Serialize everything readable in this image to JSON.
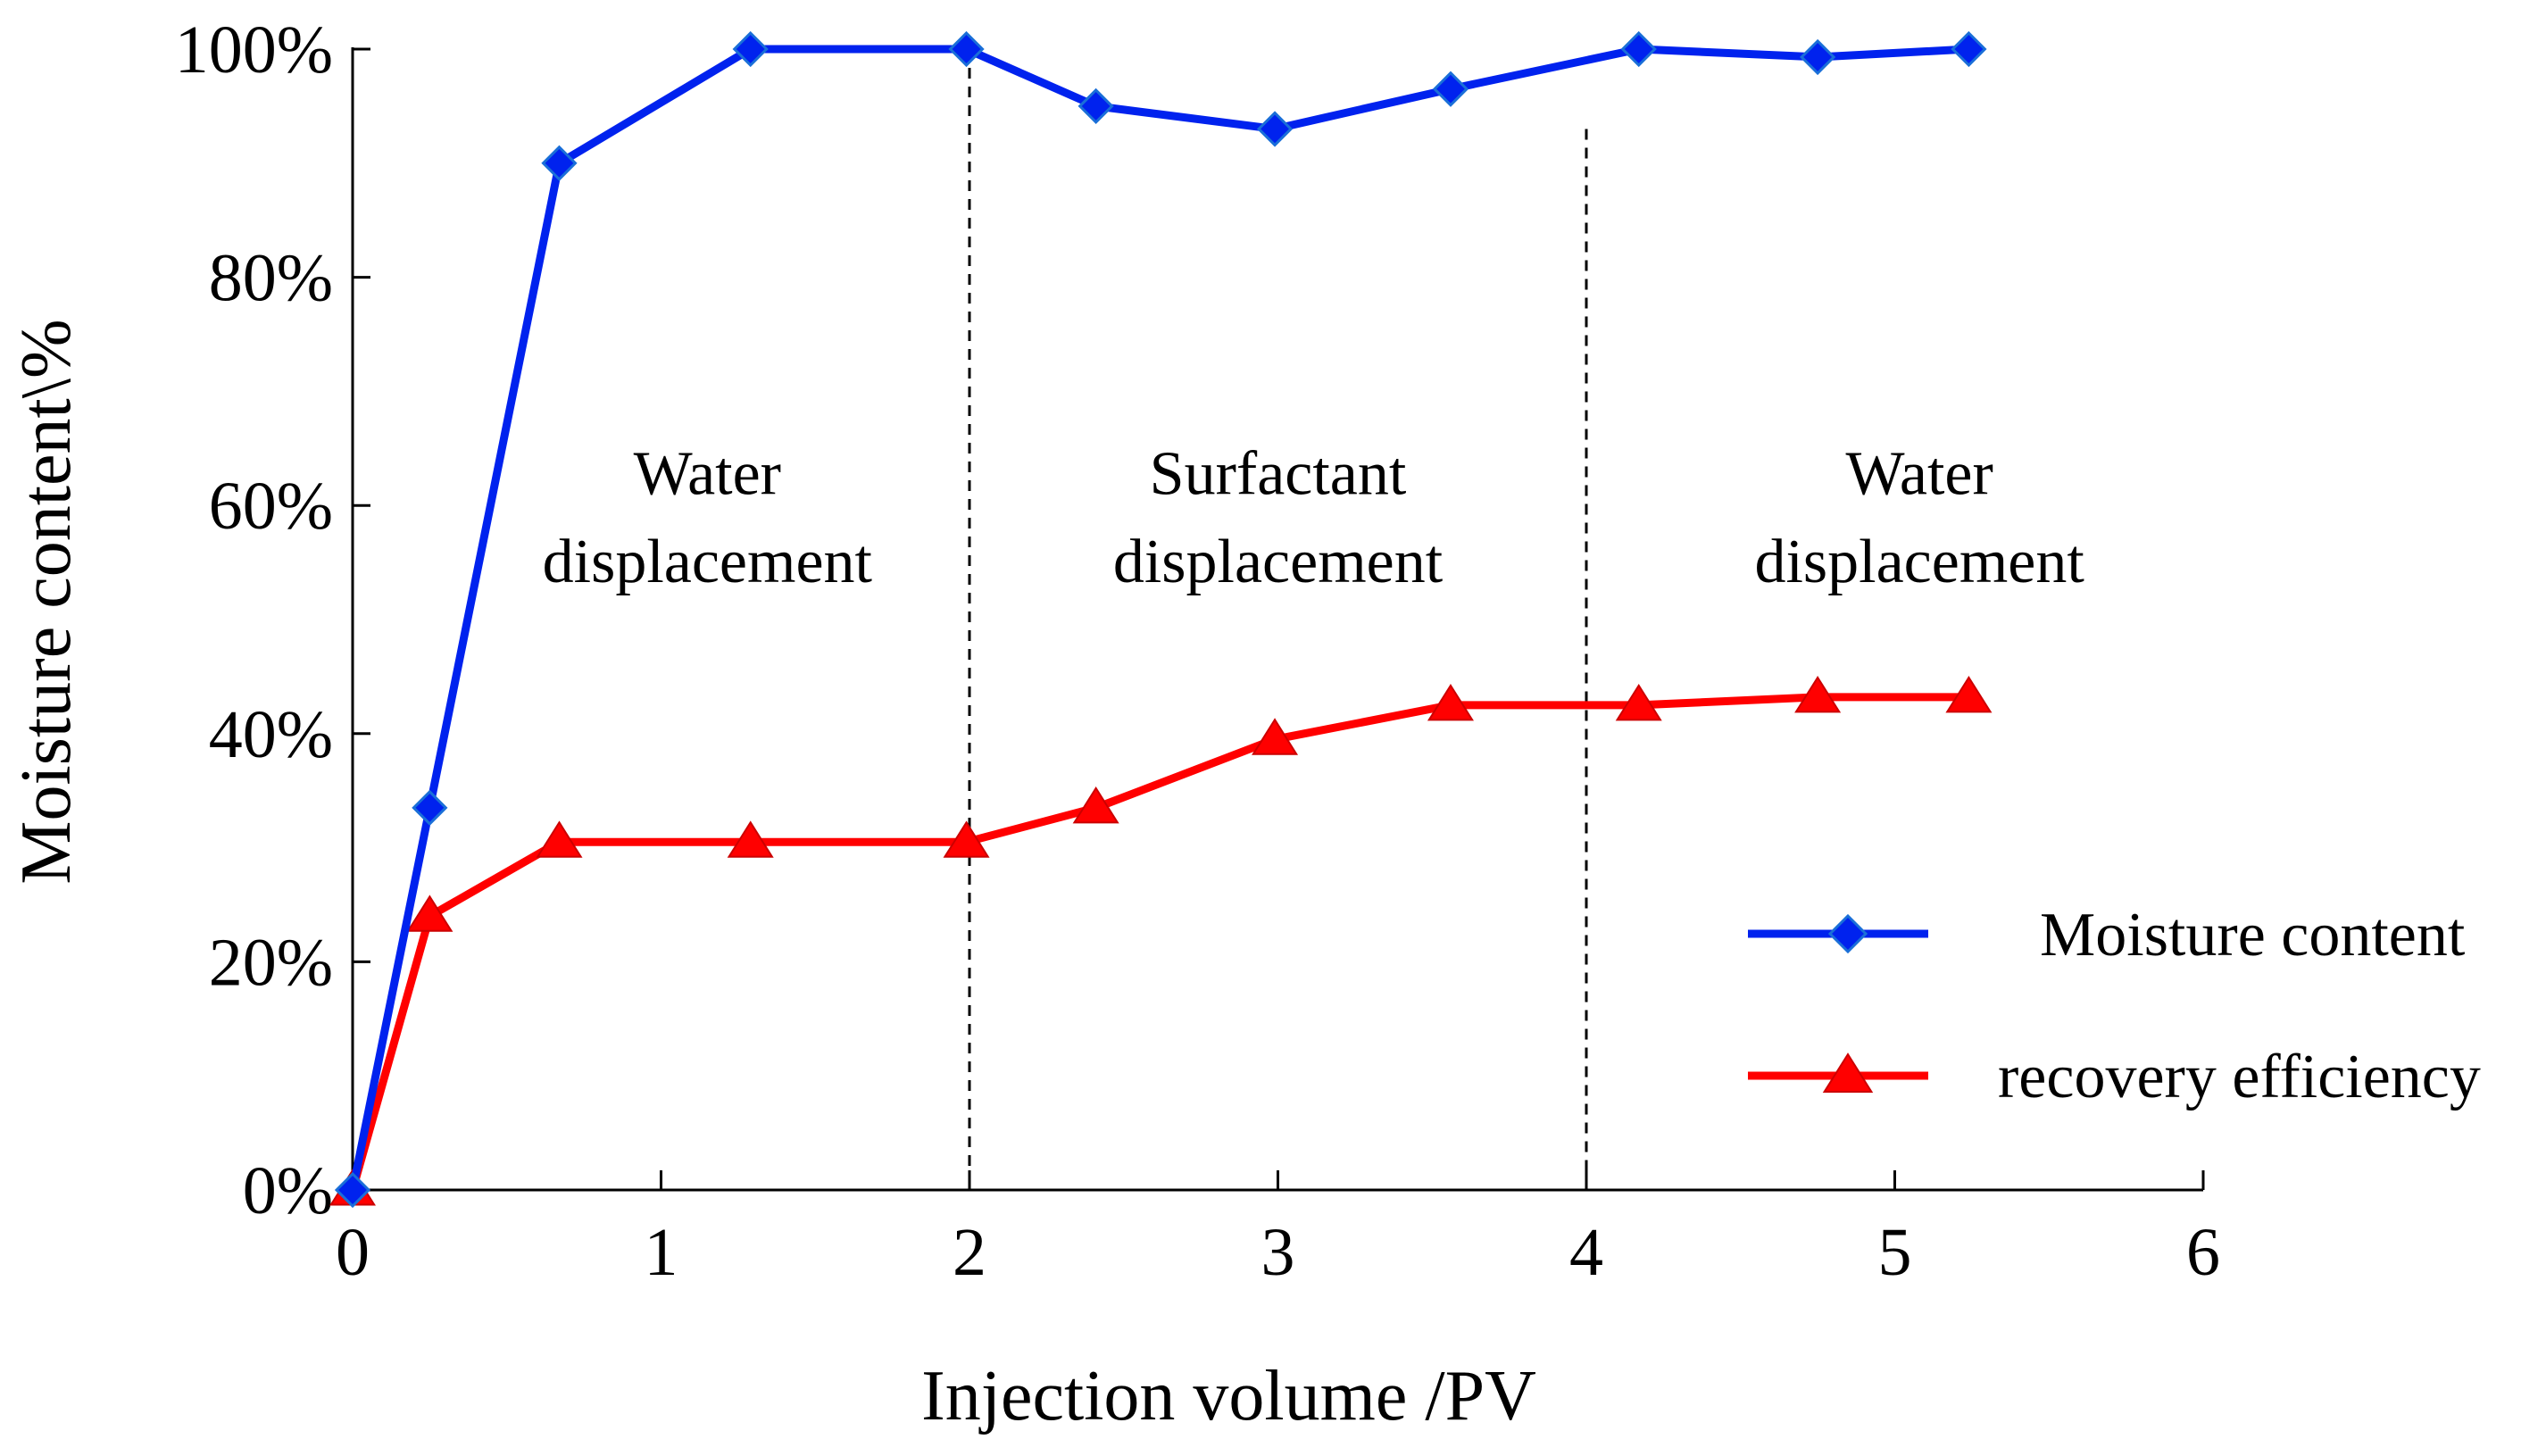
{
  "chart_data": {
    "type": "line",
    "title": "",
    "xlabel": "Injection volume /PV",
    "ylabel": "Moisture content\\%",
    "xlim": [
      0,
      6
    ],
    "ylim": [
      0,
      100
    ],
    "xticks": [
      0,
      1,
      2,
      3,
      4,
      5,
      6
    ],
    "xtick_labels": [
      "0",
      "1",
      "2",
      "3",
      "4",
      "5",
      "6"
    ],
    "yticks": [
      0,
      20,
      40,
      60,
      80,
      100
    ],
    "ytick_labels": [
      "0%",
      "20%",
      "40%",
      "60%",
      "80%",
      "100%"
    ],
    "grid": false,
    "legend_position": "right",
    "series": [
      {
        "name": "Moisture content",
        "color": "#0022ee",
        "marker": "diamond",
        "x": [
          0,
          0.25,
          0.67,
          1.29,
          1.99,
          2.41,
          2.99,
          3.56,
          4.17,
          4.75,
          5.24
        ],
        "y": [
          0,
          33.5,
          90,
          100,
          100,
          95,
          93,
          96.5,
          100,
          99.3,
          100
        ]
      },
      {
        "name": "recovery efficiency",
        "color": "#ff0000",
        "marker": "triangle",
        "x": [
          0,
          0.25,
          0.67,
          1.29,
          1.99,
          2.41,
          2.99,
          3.56,
          4.17,
          4.75,
          5.24
        ],
        "y": [
          0,
          24,
          30.5,
          30.5,
          30.5,
          33.5,
          39.5,
          42.5,
          42.5,
          43.2,
          43.2
        ]
      }
    ],
    "dividers": [
      2,
      4
    ],
    "regions": [
      {
        "x": 1.15,
        "line1": "Water",
        "line2": "displacement"
      },
      {
        "x": 3.0,
        "line1": "Surfactant",
        "line2": "displacement"
      },
      {
        "x": 5.08,
        "line1": "Water",
        "line2": "displacement"
      }
    ]
  }
}
